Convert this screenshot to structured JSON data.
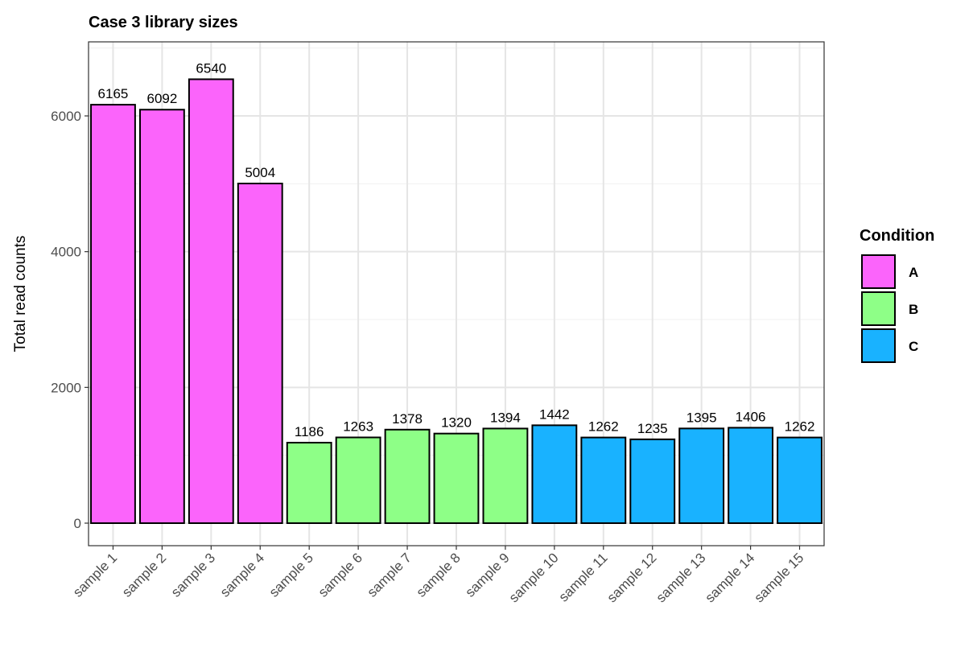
{
  "chart_data": {
    "type": "bar",
    "title": "Case 3 library sizes",
    "xlabel": "",
    "ylabel": "Total read counts",
    "ylim": [
      -332,
      7091
    ],
    "yticks": [
      0,
      2000,
      4000,
      6000
    ],
    "grid": true,
    "legend_position": "right",
    "legend_title": "Condition",
    "categories": [
      "sample 1",
      "sample 2",
      "sample 3",
      "sample 4",
      "sample 5",
      "sample 6",
      "sample 7",
      "sample 8",
      "sample 9",
      "sample 10",
      "sample 11",
      "sample 12",
      "sample 13",
      "sample 14",
      "sample 15"
    ],
    "values": [
      6165,
      6092,
      6540,
      5004,
      1186,
      1263,
      1378,
      1320,
      1394,
      1442,
      1262,
      1235,
      1395,
      1406,
      1262
    ],
    "groups": [
      "A",
      "A",
      "A",
      "A",
      "B",
      "B",
      "B",
      "B",
      "B",
      "C",
      "C",
      "C",
      "C",
      "C",
      "C"
    ],
    "legend": [
      {
        "name": "A",
        "color": "#FB64FB"
      },
      {
        "name": "B",
        "color": "#8EFF87"
      },
      {
        "name": "C",
        "color": "#19B2FF"
      }
    ]
  }
}
